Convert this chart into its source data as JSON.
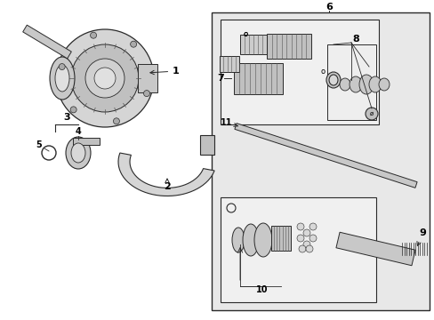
{
  "white": "#ffffff",
  "light_gray": "#e8e8e8",
  "med_gray": "#d0d0d0",
  "dark_gray": "#909090",
  "line_color": "#2a2a2a",
  "box_bg": "#e8e8e8",
  "inner_box_bg": "#f0f0f0",
  "part_numbers": [
    "1",
    "2",
    "3",
    "4",
    "5",
    "6",
    "7",
    "8",
    "9",
    "10",
    "11"
  ],
  "figsize": [
    4.89,
    3.6
  ],
  "dpi": 100
}
